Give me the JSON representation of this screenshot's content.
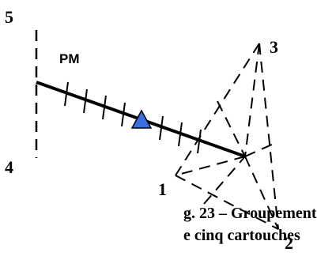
{
  "labels": {
    "point_5": "5",
    "point_4": "4",
    "point_3": "3",
    "point_2": "2",
    "point_1": "1",
    "pm": "PM"
  },
  "caption": {
    "line1": "g. 23 – Groupement",
    "line2": "e cinq cartouches"
  },
  "colors": {
    "marker_fill": "#3a6fe0",
    "line": "#000000"
  }
}
